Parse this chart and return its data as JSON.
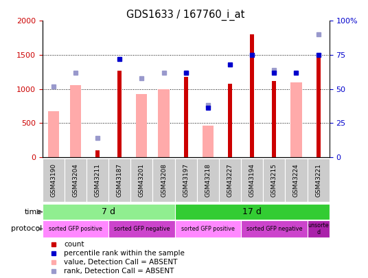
{
  "title": "GDS1633 / 167760_i_at",
  "samples": [
    "GSM43190",
    "GSM43204",
    "GSM43211",
    "GSM43187",
    "GSM43201",
    "GSM43208",
    "GSM43197",
    "GSM43218",
    "GSM43227",
    "GSM43194",
    "GSM43215",
    "GSM43224",
    "GSM43221"
  ],
  "count_values": [
    null,
    null,
    100,
    1270,
    null,
    null,
    1180,
    null,
    1080,
    1800,
    1120,
    null,
    1500
  ],
  "percentile_values": [
    null,
    null,
    null,
    72,
    null,
    null,
    62,
    36,
    68,
    75,
    62,
    62,
    75
  ],
  "absent_value": [
    670,
    1060,
    null,
    null,
    920,
    1000,
    null,
    460,
    null,
    null,
    null,
    1100,
    null
  ],
  "absent_rank": [
    52,
    62,
    14,
    null,
    58,
    62,
    62,
    38,
    null,
    null,
    64,
    null,
    90
  ],
  "ylim_left": [
    0,
    2000
  ],
  "ylim_right": [
    0,
    100
  ],
  "yticks_left": [
    0,
    500,
    1000,
    1500,
    2000
  ],
  "yticks_right": [
    0,
    25,
    50,
    75,
    100
  ],
  "time_groups": [
    {
      "label": "7 d",
      "start": 0,
      "end": 6,
      "color": "#90ee90"
    },
    {
      "label": "17 d",
      "start": 6,
      "end": 13,
      "color": "#33cc33"
    }
  ],
  "protocol_groups": [
    {
      "label": "sorted GFP positive",
      "start": 0,
      "end": 3,
      "color": "#ff88ff"
    },
    {
      "label": "sorted GFP negative",
      "start": 3,
      "end": 6,
      "color": "#cc44cc"
    },
    {
      "label": "sorted GFP positive",
      "start": 6,
      "end": 9,
      "color": "#ff88ff"
    },
    {
      "label": "sorted GFP negative",
      "start": 9,
      "end": 12,
      "color": "#cc44cc"
    },
    {
      "label": "unsorte\nd",
      "start": 12,
      "end": 13,
      "color": "#aa22aa"
    }
  ],
  "bar_color_count": "#cc0000",
  "bar_color_absent": "#ffaaaa",
  "dot_color_percentile": "#0000cc",
  "dot_color_rank": "#9999cc",
  "count_bar_width": 0.18,
  "absent_bar_width": 0.5,
  "bg_color": "#ffffff",
  "tick_label_color_left": "#cc0000",
  "tick_label_color_right": "#0000cc",
  "sample_box_color": "#cccccc",
  "legend_items": [
    {
      "color": "#cc0000",
      "label": "count"
    },
    {
      "color": "#0000cc",
      "label": "percentile rank within the sample"
    },
    {
      "color": "#ffaaaa",
      "label": "value, Detection Call = ABSENT"
    },
    {
      "color": "#9999cc",
      "label": "rank, Detection Call = ABSENT"
    }
  ]
}
